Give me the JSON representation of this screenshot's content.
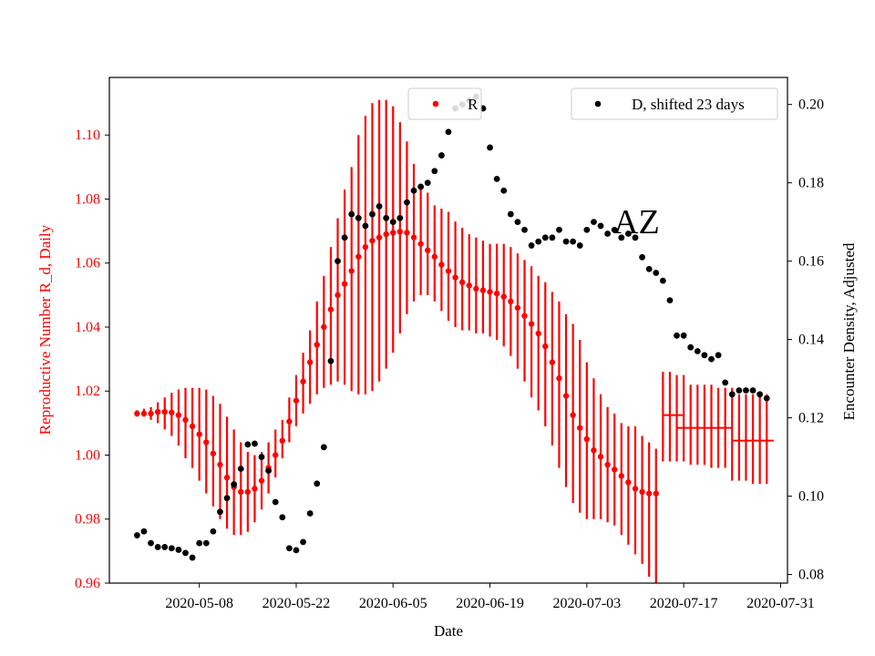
{
  "chart_data": {
    "type": "scatter",
    "title": "",
    "xlabel": "Date",
    "ylabel_left": "Reproductive Number R_d, Daily",
    "ylabel_right": "Encounter Density, Adjusted",
    "annotation": "AZ",
    "x_ticks": [
      "2020-05-08",
      "2020-05-22",
      "2020-06-05",
      "2020-06-19",
      "2020-07-03",
      "2020-07-17",
      "2020-07-31"
    ],
    "y_left_ticks": [
      "0.96",
      "0.98",
      "1.00",
      "1.02",
      "1.04",
      "1.06",
      "1.08",
      "1.10"
    ],
    "y_right_ticks": [
      "0.08",
      "0.10",
      "0.12",
      "0.14",
      "0.16",
      "0.18",
      "0.20"
    ],
    "xlim": [
      "2020-04-25",
      "2020-08-01"
    ],
    "ylim_left": [
      0.96,
      1.118
    ],
    "ylim_right": [
      0.0778,
      0.2069
    ],
    "legend": {
      "r_series": {
        "label": "R",
        "placement": "upper-center"
      },
      "d_series": {
        "label": "D, shifted 23 days",
        "placement": "upper-right"
      }
    },
    "colors": {
      "r": "#ff0000",
      "d": "#000000",
      "left_axis": "#ff0000"
    },
    "series": [
      {
        "name": "R",
        "axis": "left",
        "x": [
          "2020-04-29",
          "2020-04-30",
          "2020-05-01",
          "2020-05-02",
          "2020-05-03",
          "2020-05-04",
          "2020-05-05",
          "2020-05-06",
          "2020-05-07",
          "2020-05-08",
          "2020-05-09",
          "2020-05-10",
          "2020-05-11",
          "2020-05-12",
          "2020-05-13",
          "2020-05-14",
          "2020-05-15",
          "2020-05-16",
          "2020-05-17",
          "2020-05-18",
          "2020-05-19",
          "2020-05-20",
          "2020-05-21",
          "2020-05-22",
          "2020-05-23",
          "2020-05-24",
          "2020-05-25",
          "2020-05-26",
          "2020-05-27",
          "2020-05-28",
          "2020-05-29",
          "2020-05-30",
          "2020-05-31",
          "2020-06-01",
          "2020-06-02",
          "2020-06-03",
          "2020-06-04",
          "2020-06-05",
          "2020-06-06",
          "2020-06-07",
          "2020-06-08",
          "2020-06-09",
          "2020-06-10",
          "2020-06-11",
          "2020-06-12",
          "2020-06-13",
          "2020-06-14",
          "2020-06-15",
          "2020-06-16",
          "2020-06-17",
          "2020-06-18",
          "2020-06-19",
          "2020-06-20",
          "2020-06-21",
          "2020-06-22",
          "2020-06-23",
          "2020-06-24",
          "2020-06-25",
          "2020-06-26",
          "2020-06-27",
          "2020-06-28",
          "2020-06-29",
          "2020-06-30",
          "2020-07-01",
          "2020-07-02",
          "2020-07-03",
          "2020-07-04",
          "2020-07-05",
          "2020-07-06",
          "2020-07-07",
          "2020-07-08",
          "2020-07-09",
          "2020-07-10",
          "2020-07-11",
          "2020-07-12",
          "2020-07-13"
        ],
        "y": [
          1.013,
          1.013,
          1.013,
          1.0135,
          1.0135,
          1.0133,
          1.0125,
          1.011,
          1.009,
          1.0065,
          1.004,
          1.0005,
          0.997,
          0.993,
          0.99,
          0.9885,
          0.9885,
          0.9895,
          0.992,
          0.996,
          1.0,
          1.0045,
          1.0105,
          1.017,
          1.023,
          1.029,
          1.0345,
          1.04,
          1.0455,
          1.05,
          1.0535,
          1.0575,
          1.062,
          1.065,
          1.067,
          1.068,
          1.069,
          1.0695,
          1.0698,
          1.0695,
          1.068,
          1.066,
          1.064,
          1.062,
          1.0595,
          1.0575,
          1.0555,
          1.054,
          1.053,
          1.052,
          1.0515,
          1.051,
          1.0505,
          1.0495,
          1.048,
          1.046,
          1.0435,
          1.041,
          1.038,
          1.034,
          1.029,
          1.024,
          1.0185,
          1.0125,
          1.0085,
          1.005,
          1.0015,
          0.9995,
          0.997,
          0.9955,
          0.9935,
          0.9915,
          0.9895,
          0.9885,
          0.988,
          0.988
        ],
        "y_low": [
          1.012,
          1.012,
          1.011,
          1.01,
          1.008,
          1.006,
          1.003,
          0.999,
          0.996,
          0.992,
          0.988,
          0.984,
          0.98,
          0.977,
          0.975,
          0.975,
          0.976,
          0.979,
          0.983,
          0.988,
          0.993,
          0.999,
          1.004,
          1.009,
          1.013,
          1.016,
          1.019,
          1.021,
          1.022,
          1.023,
          1.022,
          1.02,
          1.019,
          1.019,
          1.02,
          1.023,
          1.027,
          1.032,
          1.038,
          1.044,
          1.048,
          1.05,
          1.05,
          1.048,
          1.045,
          1.042,
          1.04,
          1.039,
          1.039,
          1.038,
          1.038,
          1.037,
          1.036,
          1.034,
          1.031,
          1.027,
          1.023,
          1.018,
          1.014,
          1.009,
          1.003,
          0.996,
          0.99,
          0.985,
          0.982,
          0.98,
          0.98,
          0.98,
          0.979,
          0.978,
          0.975,
          0.972,
          0.969,
          0.966,
          0.962,
          0.96
        ],
        "y_high": [
          1.014,
          1.0145,
          1.015,
          1.0165,
          1.018,
          1.0195,
          1.0205,
          1.021,
          1.021,
          1.021,
          1.0205,
          1.0185,
          1.016,
          1.012,
          1.008,
          1.004,
          1.001,
          1.0,
          1.001,
          1.004,
          1.008,
          1.011,
          1.018,
          1.025,
          1.032,
          1.039,
          1.048,
          1.056,
          1.065,
          1.074,
          1.083,
          1.09,
          1.1,
          1.106,
          1.11,
          1.111,
          1.111,
          1.109,
          1.104,
          1.098,
          1.091,
          1.084,
          1.082,
          1.078,
          1.077,
          1.076,
          1.073,
          1.071,
          1.069,
          1.068,
          1.067,
          1.066,
          1.066,
          1.066,
          1.065,
          1.063,
          1.061,
          1.059,
          1.056,
          1.054,
          1.051,
          1.048,
          1.044,
          1.041,
          1.036,
          1.029,
          1.024,
          1.019,
          1.015,
          1.013,
          1.01,
          1.009,
          1.009,
          1.006,
          1.004,
          1.002
        ]
      },
      {
        "name": "R_segments",
        "axis": "left",
        "segments": [
          {
            "x_start": "2020-07-14",
            "x_end": "2020-07-17",
            "y": 1.0125
          },
          {
            "x_start": "2020-07-16",
            "x_end": "2020-07-24",
            "y": 1.0085
          },
          {
            "x_start": "2020-07-24",
            "x_end": "2020-07-30",
            "y": 1.0045
          }
        ],
        "bars_x": [
          "2020-07-14",
          "2020-07-15",
          "2020-07-16",
          "2020-07-17",
          "2020-07-18",
          "2020-07-19",
          "2020-07-20",
          "2020-07-21",
          "2020-07-22",
          "2020-07-23",
          "2020-07-24",
          "2020-07-25",
          "2020-07-26",
          "2020-07-27",
          "2020-07-28",
          "2020-07-29"
        ],
        "bars_low": [
          0.998,
          0.998,
          0.998,
          0.998,
          0.997,
          0.997,
          0.997,
          0.996,
          0.996,
          0.996,
          0.992,
          0.992,
          0.992,
          0.991,
          0.991,
          0.991
        ],
        "bars_high": [
          1.026,
          1.026,
          1.025,
          1.025,
          1.022,
          1.022,
          1.022,
          1.022,
          1.021,
          1.021,
          1.021,
          1.019,
          1.019,
          1.019,
          1.019,
          1.019
        ]
      },
      {
        "name": "D, shifted 23 days",
        "axis": "right",
        "x": [
          "2020-04-29",
          "2020-04-30",
          "2020-05-01",
          "2020-05-02",
          "2020-05-03",
          "2020-05-04",
          "2020-05-05",
          "2020-05-06",
          "2020-05-07",
          "2020-05-08",
          "2020-05-09",
          "2020-05-10",
          "2020-05-11",
          "2020-05-12",
          "2020-05-13",
          "2020-05-14",
          "2020-05-15",
          "2020-05-16",
          "2020-05-17",
          "2020-05-18",
          "2020-05-19",
          "2020-05-20",
          "2020-05-21",
          "2020-05-22",
          "2020-05-23",
          "2020-05-24",
          "2020-05-25",
          "2020-05-26",
          "2020-05-27",
          "2020-05-28",
          "2020-05-29",
          "2020-05-30",
          "2020-05-31",
          "2020-06-01",
          "2020-06-02",
          "2020-06-03",
          "2020-06-04",
          "2020-06-05",
          "2020-06-06",
          "2020-06-07",
          "2020-06-08",
          "2020-06-09",
          "2020-06-10",
          "2020-06-11",
          "2020-06-12",
          "2020-06-13",
          "2020-06-14",
          "2020-06-15",
          "2020-06-16",
          "2020-06-17",
          "2020-06-18",
          "2020-06-19",
          "2020-06-20",
          "2020-06-21",
          "2020-06-22",
          "2020-06-23",
          "2020-06-24",
          "2020-06-25",
          "2020-06-26",
          "2020-06-27",
          "2020-06-28",
          "2020-06-29",
          "2020-06-30",
          "2020-07-01",
          "2020-07-02",
          "2020-07-03",
          "2020-07-04",
          "2020-07-05",
          "2020-07-06",
          "2020-07-07",
          "2020-07-08",
          "2020-07-09",
          "2020-07-10",
          "2020-07-11",
          "2020-07-12",
          "2020-07-13",
          "2020-07-14",
          "2020-07-15",
          "2020-07-16",
          "2020-07-17",
          "2020-07-18",
          "2020-07-19",
          "2020-07-20",
          "2020-07-21",
          "2020-07-22",
          "2020-07-23",
          "2020-07-24",
          "2020-07-25",
          "2020-07-26",
          "2020-07-27",
          "2020-07-28",
          "2020-07-29"
        ],
        "y": [
          0.09,
          0.091,
          0.088,
          0.087,
          0.087,
          0.0867,
          0.0863,
          0.0855,
          0.0843,
          0.088,
          0.088,
          0.091,
          0.096,
          0.0995,
          0.103,
          0.107,
          0.1132,
          0.1134,
          0.11,
          0.1065,
          0.0985,
          0.0946,
          0.0867,
          0.0862,
          0.0883,
          0.0956,
          0.1032,
          0.1125,
          0.1345,
          0.16,
          0.166,
          0.172,
          0.171,
          0.169,
          0.172,
          0.174,
          0.171,
          0.17,
          0.171,
          0.175,
          0.178,
          0.179,
          0.18,
          0.183,
          0.187,
          0.193,
          0.199,
          0.2,
          0.201,
          0.202,
          0.199,
          0.189,
          0.181,
          0.178,
          0.172,
          0.17,
          0.168,
          0.164,
          0.165,
          0.166,
          0.166,
          0.168,
          0.165,
          0.165,
          0.164,
          0.168,
          0.17,
          0.169,
          0.167,
          0.168,
          0.166,
          0.167,
          0.166,
          0.161,
          0.158,
          0.157,
          0.155,
          0.15,
          0.141,
          0.141,
          0.138,
          0.137,
          0.136,
          0.135,
          0.136,
          0.129,
          0.126,
          0.127,
          0.127,
          0.127,
          0.126,
          0.125
        ],
        "x_override_note": ""
      }
    ]
  }
}
